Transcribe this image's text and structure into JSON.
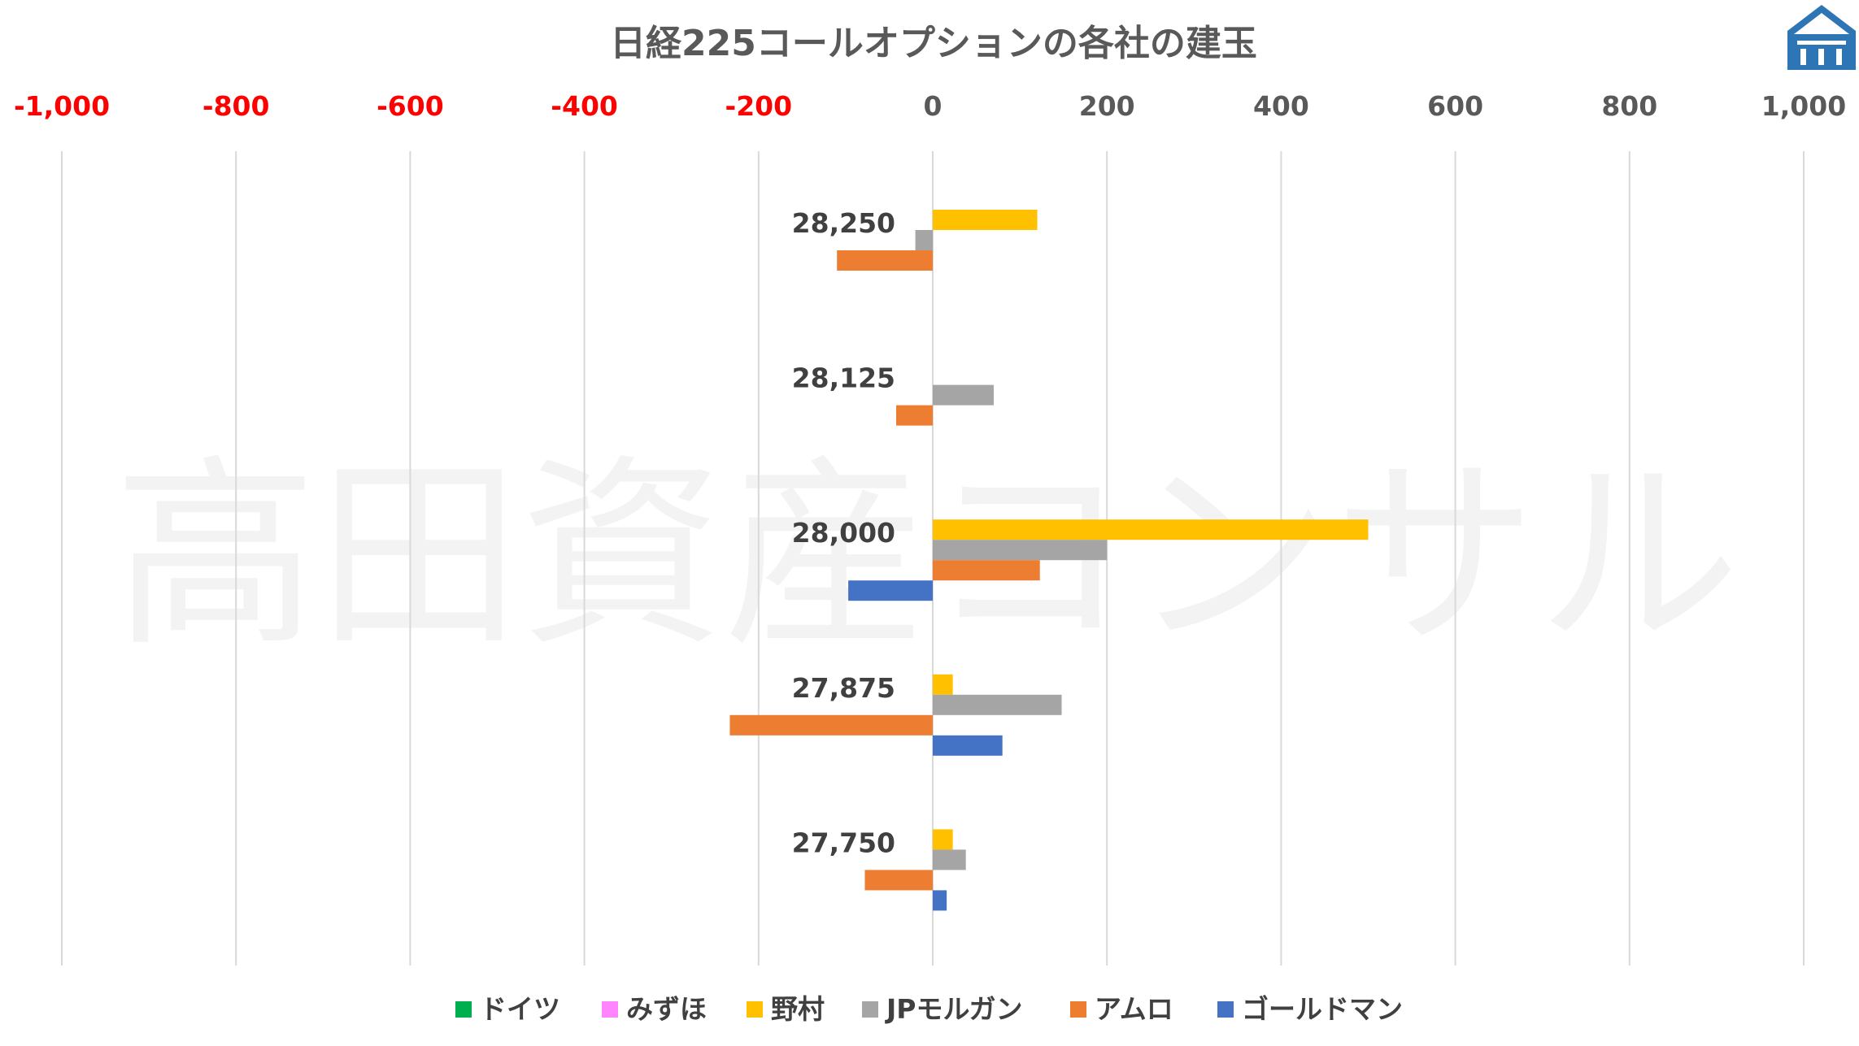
{
  "chart_data": {
    "type": "bar",
    "orientation": "horizontal",
    "title": "日経225コールオプションの各社の建玉",
    "xlim": [
      -1000,
      1000
    ],
    "x_ticks": [
      -1000,
      -800,
      -600,
      -400,
      -200,
      0,
      200,
      400,
      600,
      800,
      1000
    ],
    "x_tick_labels": [
      "-1,000",
      "-800",
      "-600",
      "-400",
      "-200",
      "0",
      "200",
      "400",
      "600",
      "800",
      "1,000"
    ],
    "negative_tick_color": "#ff0000",
    "positive_tick_color": "#595959",
    "grid": true,
    "legend_position": "bottom",
    "categories": [
      "28,250",
      "28,125",
      "28,000",
      "27,875",
      "27,750"
    ],
    "series": [
      {
        "name": "ドイツ",
        "color": "#00b050",
        "values": [
          0,
          0,
          0,
          0,
          0
        ]
      },
      {
        "name": "みずほ",
        "color": "#ff85ff",
        "values": [
          0,
          0,
          0,
          0,
          0
        ]
      },
      {
        "name": "野村",
        "color": "#ffc000",
        "values": [
          120,
          0,
          500,
          23,
          23
        ]
      },
      {
        "name": "JPモルガン",
        "color": "#a5a5a5",
        "values": [
          -20,
          70,
          200,
          148,
          38
        ]
      },
      {
        "name": "アムロ",
        "color": "#ed7d31",
        "values": [
          -110,
          -42,
          123,
          -233,
          -78
        ]
      },
      {
        "name": "ゴールドマン",
        "color": "#4472c4",
        "values": [
          0,
          0,
          -97,
          80,
          16
        ]
      }
    ]
  },
  "watermark": {
    "text": "高田資産コンサル"
  },
  "logo": {
    "icon": "house-logo-icon",
    "color": "#2e75b6"
  }
}
